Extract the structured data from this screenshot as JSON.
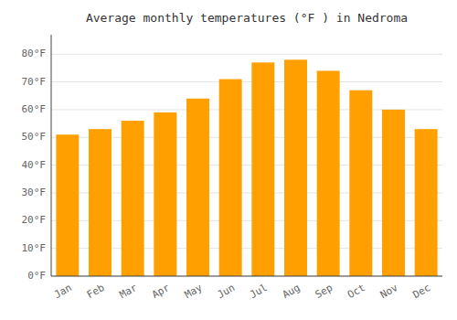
{
  "chart_data": {
    "type": "bar",
    "title": "Average monthly temperatures (°F ) in Nedroma",
    "categories": [
      "Jan",
      "Feb",
      "Mar",
      "Apr",
      "May",
      "Jun",
      "Jul",
      "Aug",
      "Sep",
      "Oct",
      "Nov",
      "Dec"
    ],
    "values": [
      51,
      53,
      56,
      59,
      64,
      71,
      77,
      78,
      74,
      67,
      60,
      53
    ],
    "color": "#FFA000",
    "ylim": [
      0,
      87
    ],
    "yticks": [
      {
        "value": 0,
        "label": "0°F"
      },
      {
        "value": 10,
        "label": "10°F"
      },
      {
        "value": 20,
        "label": "20°F"
      },
      {
        "value": 30,
        "label": "30°F"
      },
      {
        "value": 40,
        "label": "40°F"
      },
      {
        "value": 50,
        "label": "50°F"
      },
      {
        "value": 60,
        "label": "60°F"
      },
      {
        "value": 70,
        "label": "70°F"
      },
      {
        "value": 80,
        "label": "80°F"
      }
    ],
    "grid": true
  }
}
